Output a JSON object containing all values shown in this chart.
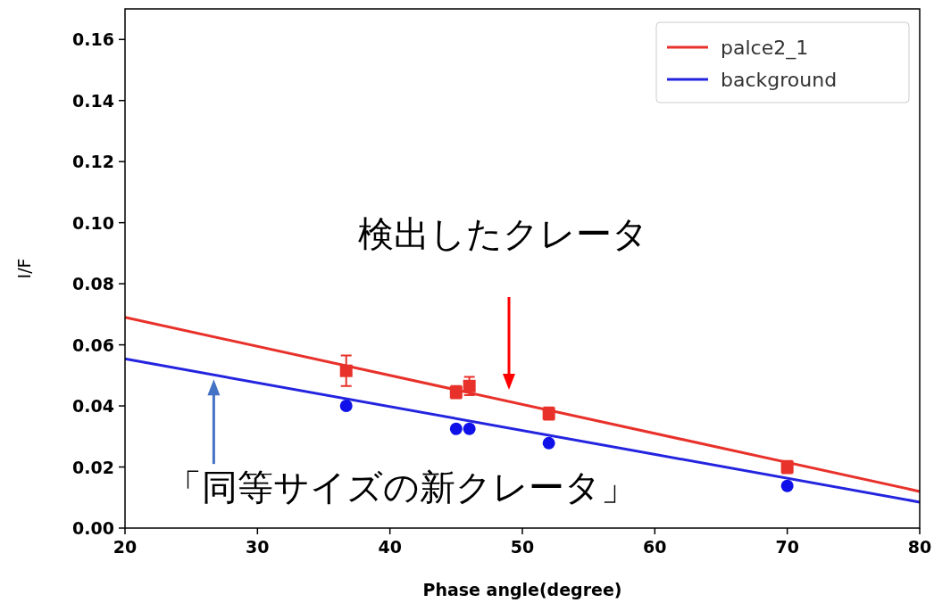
{
  "chart_data": {
    "type": "line",
    "xlabel": "Phase angle(degree)",
    "ylabel": "I/F",
    "xlim": [
      20,
      80
    ],
    "xticks": [
      20,
      30,
      40,
      50,
      60,
      70,
      80
    ],
    "ylim": [
      0,
      0.17
    ],
    "yticks": [
      {
        "value": 0,
        "label": "0.00"
      },
      {
        "value": 0.02,
        "label": "0.02"
      },
      {
        "value": 0.04,
        "label": "0.04"
      },
      {
        "value": 0.06,
        "label": "0.06"
      },
      {
        "value": 0.08,
        "label": "0.08"
      },
      {
        "value": 0.1,
        "label": "0.10"
      },
      {
        "value": 0.12,
        "label": "0.12"
      },
      {
        "value": 0.14,
        "label": "0.14"
      },
      {
        "value": 0.16,
        "label": "0.16"
      }
    ],
    "grid": false,
    "legend": "top right",
    "series": [
      {
        "name": "palce2_1",
        "color": "#e8312a",
        "x": [
          20,
          80
        ],
        "values": [
          0.069,
          0.012
        ],
        "marker": "none"
      },
      {
        "name": "background",
        "color": "#2424e0",
        "x": [
          20,
          80
        ],
        "values": [
          0.0554,
          0.0085
        ],
        "marker": "none"
      },
      {
        "type": "scatter",
        "color": "#e8312a",
        "marker": "square",
        "x": [
          36.7,
          45,
          46,
          52,
          70
        ],
        "values": [
          0.0515,
          0.0445,
          0.0465,
          0.0375,
          0.02
        ],
        "errors": [
          0.005,
          0.002,
          0.003,
          0.002,
          0.002
        ]
      },
      {
        "type": "scatter",
        "color": "#1010e8",
        "marker": "circle",
        "x": [
          36.7,
          45,
          46,
          52,
          70
        ],
        "values": [
          0.04,
          0.0325,
          0.0325,
          0.0278,
          0.0138
        ]
      }
    ],
    "annotations": [
      "検出したクレータ",
      {
        "text": "「同等サイズの新クレータ」",
        "x": 26.7,
        "y": 0.0502
      }
    ]
  }
}
